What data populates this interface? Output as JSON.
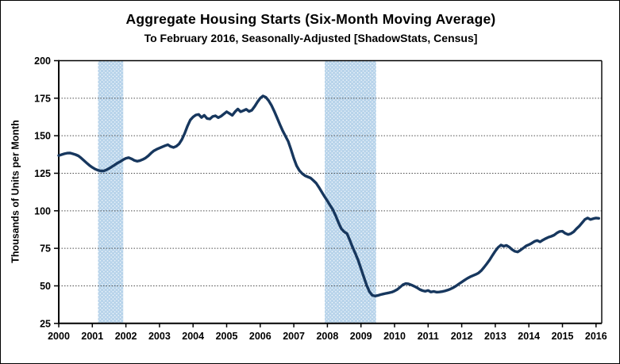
{
  "chart_data": {
    "type": "line",
    "title": "Aggregate Housing Starts (Six-Month Moving Average)",
    "subtitle": "To February 2016, Seasonally-Adjusted [ShadowStats, Census]",
    "ylabel": "Thousands of Units per Month",
    "xlabel": "",
    "ylim": [
      25,
      200
    ],
    "xlim": [
      2000,
      2016.17
    ],
    "y_ticks": [
      25,
      50,
      75,
      100,
      125,
      150,
      175,
      200
    ],
    "x_ticks": [
      2000,
      2001,
      2002,
      2003,
      2004,
      2005,
      2006,
      2007,
      2008,
      2009,
      2010,
      2011,
      2012,
      2013,
      2014,
      2015,
      2016
    ],
    "grid": "horizontal-dotted",
    "legend_position": "none",
    "recession_bands": [
      [
        2001.17,
        2001.92
      ],
      [
        2007.92,
        2009.45
      ]
    ],
    "band_fill_color": "#b7d3ea",
    "band_dot_color": "#eef5fb",
    "line_color": "#17375e",
    "axis_color": "#000000",
    "gridline_color": "#4d4d4d",
    "series": [
      {
        "name": "Aggregate Housing Starts (Six-Month Moving Average)",
        "start_year": 2000,
        "interval_months": 1,
        "values": [
          136.8,
          137.4,
          138.0,
          138.4,
          138.5,
          138.0,
          137.4,
          136.6,
          135.2,
          133.5,
          131.8,
          130.2,
          128.9,
          127.8,
          127.0,
          126.6,
          126.5,
          127.2,
          128.2,
          129.4,
          130.6,
          131.8,
          132.8,
          134.0,
          135.0,
          135.4,
          134.6,
          133.6,
          133.0,
          133.4,
          134.2,
          135.2,
          136.6,
          138.4,
          140.0,
          141.0,
          141.8,
          142.6,
          143.4,
          144.0,
          142.8,
          142.2,
          143.0,
          144.6,
          147.5,
          151.5,
          156.5,
          160.5,
          162.5,
          163.8,
          164.2,
          162.2,
          163.6,
          161.5,
          161.2,
          162.8,
          163.3,
          162.0,
          163.0,
          164.5,
          166.0,
          164.8,
          163.6,
          166.0,
          167.8,
          166.0,
          166.8,
          167.6,
          166.2,
          167.0,
          169.5,
          172.5,
          175.0,
          176.5,
          175.6,
          173.4,
          170.3,
          166.4,
          162.0,
          157.6,
          153.4,
          149.8,
          146.2,
          140.8,
          135.0,
          130.0,
          126.8,
          124.8,
          123.4,
          122.6,
          121.8,
          120.2,
          118.4,
          115.6,
          112.4,
          109.4,
          106.6,
          103.6,
          100.6,
          96.5,
          92.0,
          88.0,
          86.0,
          84.8,
          80.5,
          75.8,
          71.5,
          67.0,
          61.5,
          56.0,
          50.5,
          46.2,
          43.8,
          43.2,
          43.6,
          44.2,
          44.6,
          45.0,
          45.4,
          45.8,
          46.6,
          47.6,
          49.2,
          50.8,
          51.5,
          51.3,
          50.6,
          49.8,
          48.8,
          47.6,
          46.8,
          46.4,
          46.9,
          45.9,
          46.3,
          45.8,
          45.9,
          46.2,
          46.6,
          47.2,
          47.9,
          48.8,
          50.0,
          51.3,
          52.5,
          53.8,
          55.0,
          56.0,
          56.8,
          57.6,
          58.6,
          60.2,
          62.4,
          64.8,
          67.4,
          70.4,
          73.2,
          75.6,
          77.2,
          76.4,
          77.0,
          75.8,
          74.2,
          73.0,
          72.6,
          73.8,
          75.2,
          76.6,
          77.4,
          78.4,
          79.6,
          80.2,
          79.3,
          80.5,
          81.5,
          82.4,
          83.0,
          83.8,
          85.2,
          86.2,
          86.4,
          85.0,
          84.2,
          84.8,
          86.0,
          88.0,
          89.8,
          92.0,
          94.2,
          95.2,
          94.2,
          94.8,
          95.2,
          95.0
        ]
      }
    ]
  }
}
